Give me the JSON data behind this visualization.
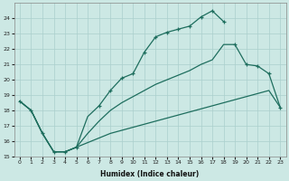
{
  "xlabel": "Humidex (Indice chaleur)",
  "bg_color": "#cce8e4",
  "line_color": "#1e6e5e",
  "grid_color": "#aacfcc",
  "xlim": [
    -0.5,
    23.5
  ],
  "ylim": [
    15,
    25
  ],
  "yticks": [
    15,
    16,
    17,
    18,
    19,
    20,
    21,
    22,
    23,
    24
  ],
  "xticks": [
    0,
    1,
    2,
    3,
    4,
    5,
    6,
    7,
    8,
    9,
    10,
    11,
    12,
    13,
    14,
    15,
    16,
    17,
    18,
    19,
    20,
    21,
    22,
    23
  ],
  "curve1_x": [
    0,
    1,
    2,
    3,
    4,
    5,
    6,
    7,
    8,
    9,
    10,
    11,
    12,
    13,
    14,
    15,
    16,
    17,
    18
  ],
  "curve1_y": [
    18.6,
    18.0,
    16.5,
    15.3,
    15.3,
    15.6,
    17.6,
    18.3,
    19.3,
    20.1,
    20.4,
    21.8,
    22.8,
    23.1,
    23.3,
    23.5,
    24.1,
    24.5,
    23.8
  ],
  "curve1_markers_x": [
    0,
    1,
    2,
    3,
    4,
    5,
    7,
    8,
    9,
    10,
    11,
    12,
    13,
    14,
    15,
    16,
    17,
    18
  ],
  "curve1_markers_y": [
    18.6,
    18.0,
    16.5,
    15.3,
    15.3,
    15.6,
    18.3,
    19.3,
    20.1,
    20.4,
    21.8,
    22.8,
    23.1,
    23.3,
    23.5,
    24.1,
    24.5,
    23.8
  ],
  "curve2_x": [
    0,
    1,
    2,
    3,
    4,
    5,
    6,
    7,
    8,
    9,
    10,
    11,
    12,
    13,
    14,
    15,
    16,
    17,
    18,
    19,
    20,
    21,
    22,
    23
  ],
  "curve2_y": [
    18.6,
    18.0,
    16.5,
    15.3,
    15.3,
    15.6,
    16.5,
    17.3,
    18.0,
    18.5,
    18.9,
    19.3,
    19.7,
    20.0,
    20.3,
    20.6,
    21.0,
    21.3,
    22.3,
    22.3,
    21.0,
    20.9,
    20.4,
    18.2
  ],
  "curve2_markers_x": [
    19,
    20,
    21,
    22,
    23
  ],
  "curve2_markers_y": [
    22.3,
    21.0,
    20.9,
    20.4,
    18.2
  ],
  "curve3_x": [
    0,
    1,
    2,
    3,
    4,
    5,
    6,
    7,
    8,
    9,
    10,
    11,
    12,
    13,
    14,
    15,
    16,
    17,
    18,
    19,
    20,
    21,
    22,
    23
  ],
  "curve3_y": [
    18.6,
    18.0,
    16.5,
    15.3,
    15.3,
    15.6,
    15.9,
    16.2,
    16.5,
    16.7,
    16.9,
    17.1,
    17.3,
    17.5,
    17.7,
    17.9,
    18.1,
    18.3,
    18.5,
    18.7,
    18.9,
    19.1,
    19.3,
    18.2
  ]
}
